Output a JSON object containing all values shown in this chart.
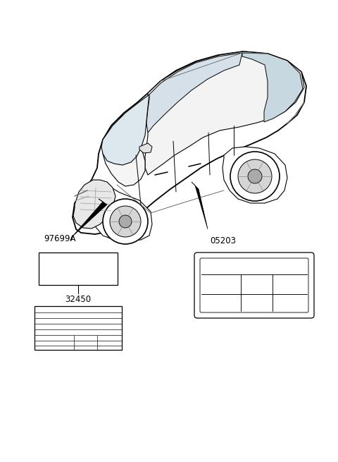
{
  "bg_color": "#ffffff",
  "lc": "#000000",
  "label_97699A": "97699A",
  "label_05203": "05203",
  "label_32450": "32450",
  "fig_width": 4.8,
  "fig_height": 6.55,
  "dpi": 100
}
